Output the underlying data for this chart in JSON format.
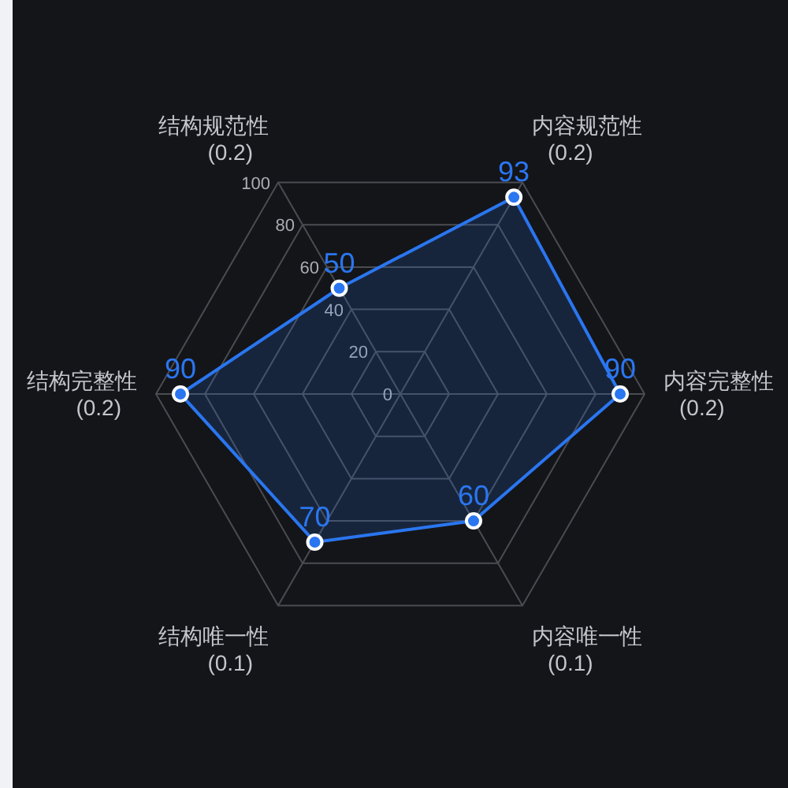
{
  "chart_data": {
    "type": "radar",
    "categories": [
      "内容规范性\n(0.2)",
      "内容完整性\n(0.2)",
      "内容唯一性\n(0.1)",
      "结构唯一性\n(0.1)",
      "结构完整性\n(0.2)",
      "结构规范性\n(0.2)"
    ],
    "series": [
      {
        "color": "#2a76f0",
        "values": [
          93,
          90,
          60,
          70,
          90,
          50
        ]
      }
    ],
    "ylim": [
      0,
      100
    ],
    "yticks": [
      0,
      20,
      40,
      60,
      80,
      100
    ],
    "grid": true,
    "data_labels": true,
    "marker": "circle",
    "line_style": "solid"
  }
}
